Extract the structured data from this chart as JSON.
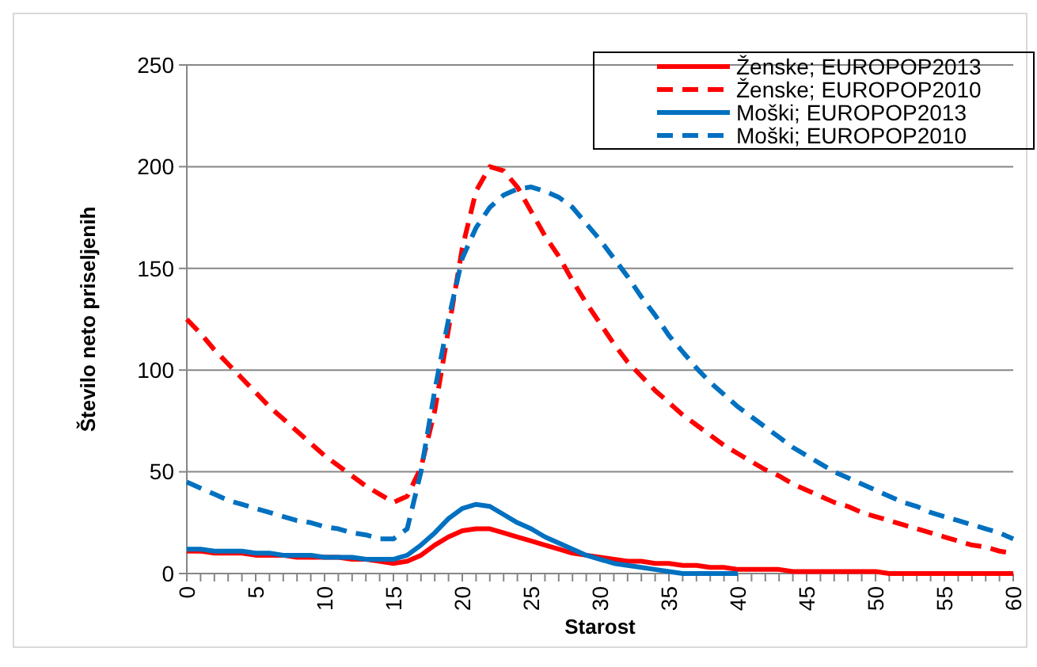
{
  "chart_data": {
    "type": "line",
    "xlabel": "Starost",
    "ylabel": "Število neto priseljenih",
    "x": [
      0,
      1,
      2,
      3,
      4,
      5,
      6,
      7,
      8,
      9,
      10,
      11,
      12,
      13,
      14,
      15,
      16,
      17,
      18,
      19,
      20,
      21,
      22,
      23,
      24,
      25,
      26,
      27,
      28,
      29,
      30,
      31,
      32,
      33,
      34,
      35,
      36,
      37,
      38,
      39,
      40,
      41,
      42,
      43,
      44,
      45,
      46,
      47,
      48,
      49,
      50,
      51,
      52,
      53,
      54,
      55,
      56,
      57,
      58,
      59,
      60
    ],
    "xlim": [
      0,
      60
    ],
    "xticks": [
      0,
      5,
      10,
      15,
      20,
      25,
      30,
      35,
      40,
      45,
      50,
      55,
      60
    ],
    "ylim": [
      0,
      250
    ],
    "yticks": [
      0,
      50,
      100,
      150,
      200,
      250
    ],
    "grid": "y",
    "legend": "top right",
    "series": [
      {
        "name": "Ženske; EUROPOP2013",
        "color": "#ff0000",
        "line_style": "solid",
        "values": [
          11,
          11,
          10,
          10,
          10,
          9,
          9,
          9,
          8,
          8,
          8,
          8,
          7,
          7,
          6,
          5,
          6,
          9,
          14,
          18,
          21,
          22,
          22,
          20,
          18,
          16,
          14,
          12,
          10,
          9,
          8,
          7,
          6,
          6,
          5,
          5,
          4,
          4,
          3,
          3,
          2,
          2,
          2,
          2,
          1,
          1,
          1,
          1,
          1,
          1,
          1,
          0,
          0,
          0,
          0,
          0,
          0,
          0,
          0,
          0,
          0
        ]
      },
      {
        "name": "Ženske; EUROPOP2010",
        "color": "#ff0000",
        "line_style": "dashed",
        "values": [
          125,
          118,
          110,
          103,
          96,
          89,
          82,
          76,
          70,
          64,
          58,
          53,
          48,
          43,
          39,
          35,
          38,
          52,
          80,
          120,
          160,
          188,
          200,
          198,
          190,
          178,
          166,
          156,
          144,
          133,
          123,
          113,
          104,
          97,
          90,
          84,
          78,
          73,
          68,
          63,
          59,
          55,
          51,
          48,
          44,
          41,
          38,
          35,
          33,
          30,
          28,
          26,
          24,
          22,
          20,
          18,
          16,
          14,
          13,
          11,
          10
        ]
      },
      {
        "name": "Moški; EUROPOP2013",
        "color": "#0070c0",
        "line_style": "solid",
        "values": [
          12,
          12,
          11,
          11,
          11,
          10,
          10,
          9,
          9,
          9,
          8,
          8,
          8,
          7,
          7,
          7,
          9,
          14,
          20,
          27,
          32,
          34,
          33,
          29,
          25,
          22,
          18,
          15,
          12,
          9,
          7,
          5,
          4,
          3,
          2,
          1,
          0,
          0,
          0,
          0,
          0,
          null,
          null,
          null,
          null,
          null,
          null,
          null,
          null,
          null,
          null,
          null,
          null,
          null,
          null,
          null,
          null,
          null,
          null,
          null,
          null
        ]
      },
      {
        "name": "Moški; EUROPOP2010",
        "color": "#0070c0",
        "line_style": "dashed",
        "values": [
          45,
          42,
          39,
          36,
          34,
          32,
          30,
          28,
          26,
          25,
          23,
          22,
          20,
          19,
          17,
          17,
          22,
          50,
          90,
          125,
          155,
          170,
          180,
          186,
          189,
          190,
          188,
          185,
          180,
          172,
          164,
          155,
          146,
          136,
          127,
          117,
          109,
          101,
          94,
          88,
          82,
          77,
          72,
          67,
          62,
          58,
          54,
          50,
          47,
          44,
          41,
          38,
          35,
          33,
          30,
          28,
          26,
          24,
          22,
          20,
          17
        ]
      }
    ]
  }
}
